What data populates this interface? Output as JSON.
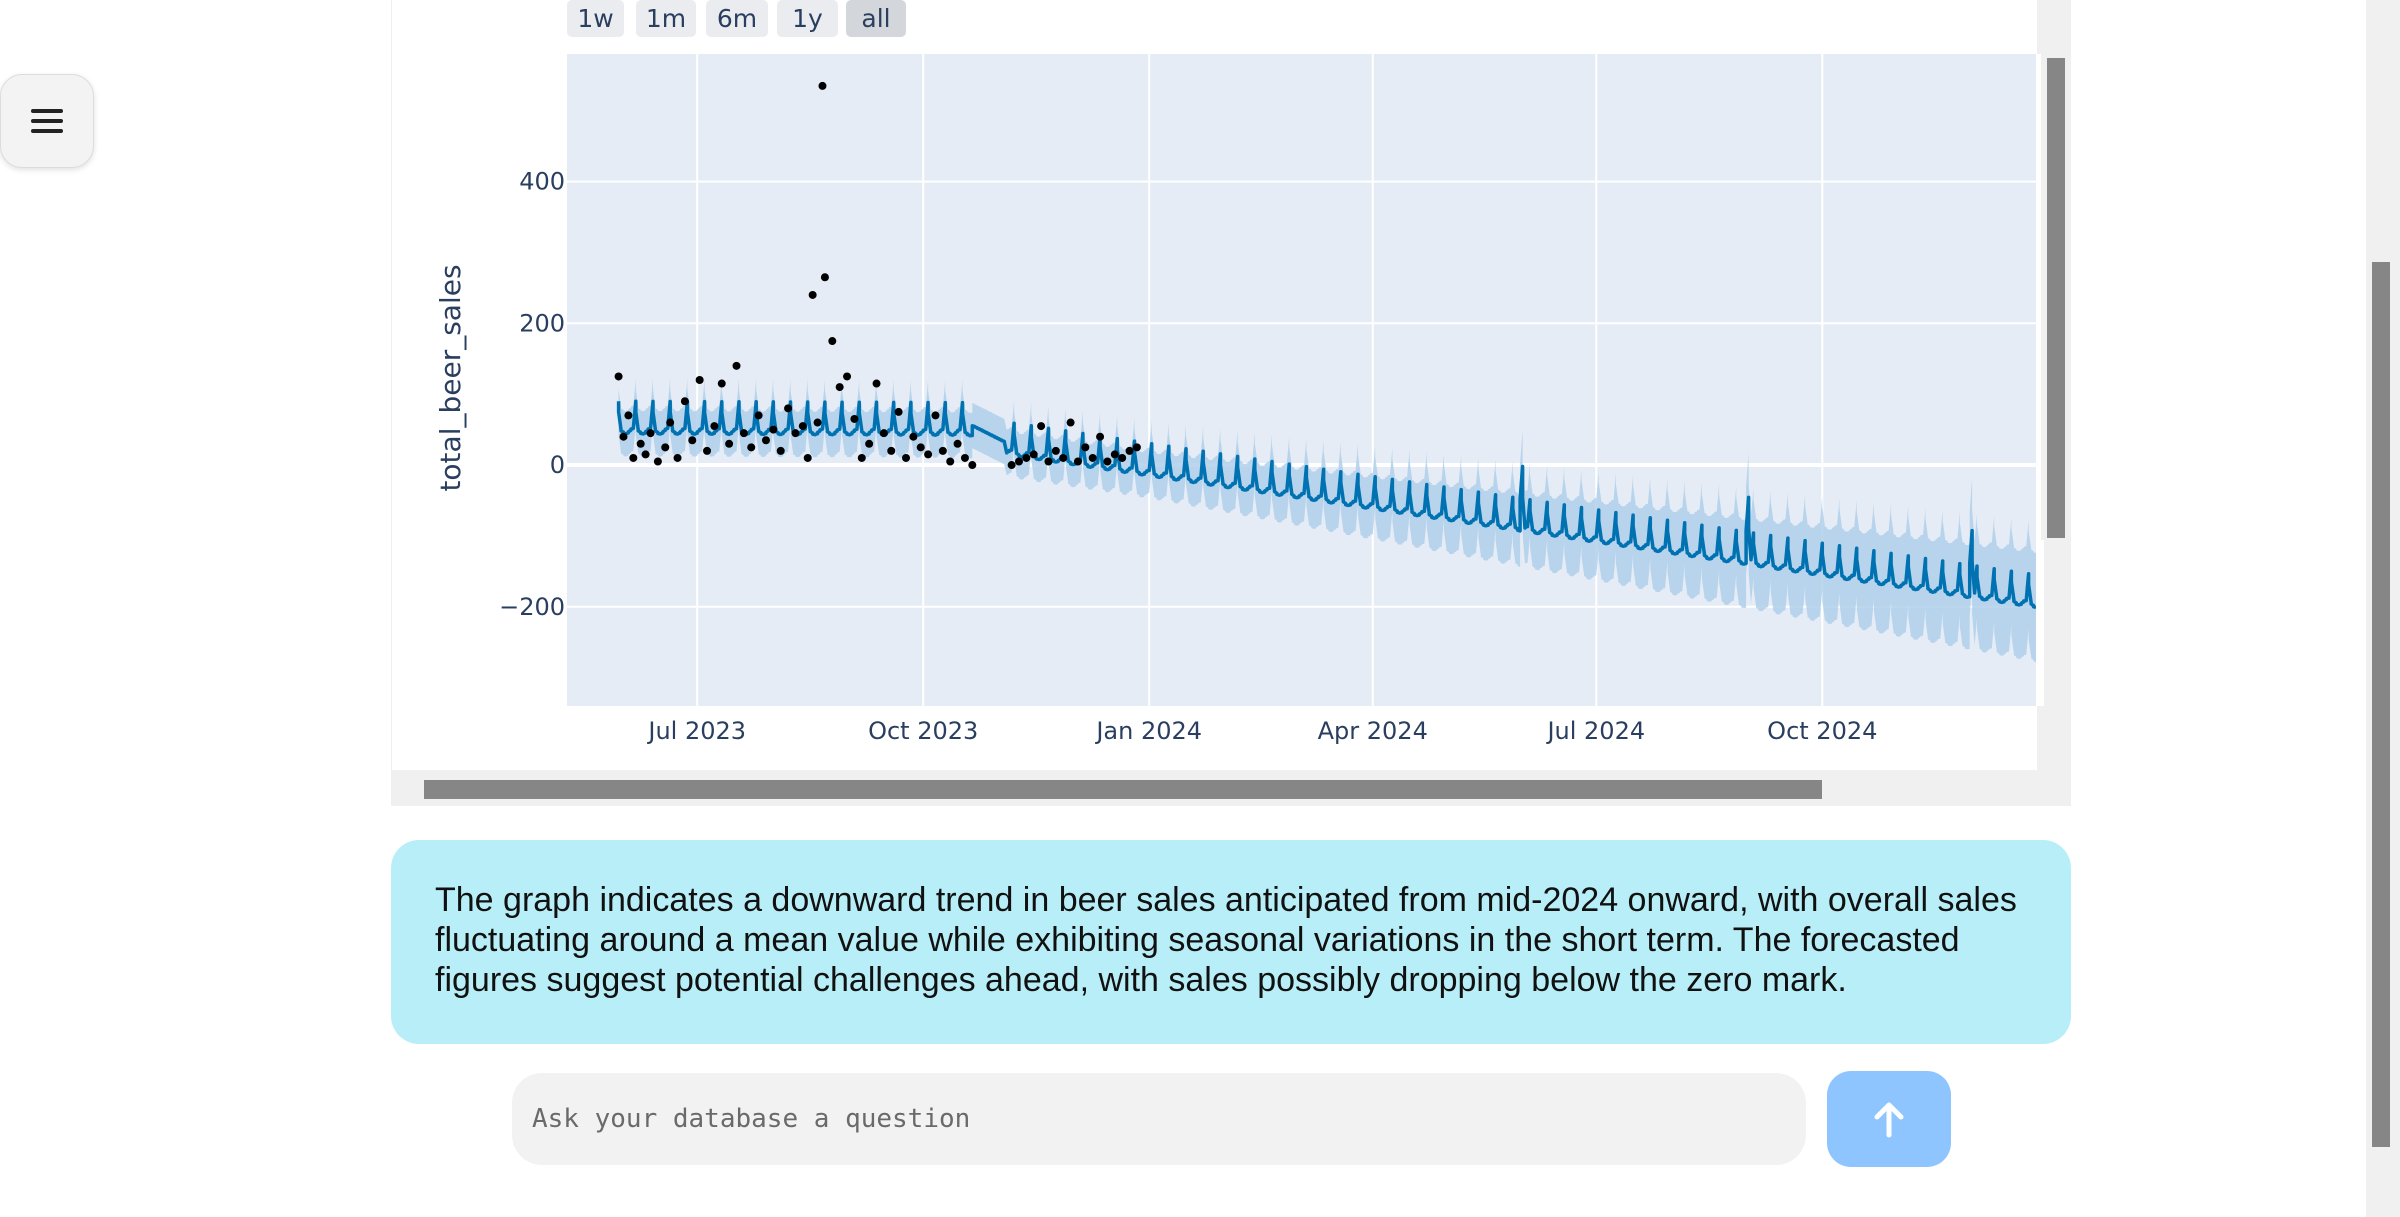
{
  "chart": {
    "range_buttons": [
      {
        "label": "1w",
        "active": false
      },
      {
        "label": "1m",
        "active": false
      },
      {
        "label": "6m",
        "active": false
      },
      {
        "label": "1y",
        "active": false
      },
      {
        "label": "all",
        "active": true
      }
    ]
  },
  "chart_data": {
    "type": "line",
    "title": "",
    "xlabel": "",
    "ylabel": "total_beer_sales",
    "x_tick_labels": [
      "Jul 2023",
      "Oct 2023",
      "Jan 2024",
      "Apr 2024",
      "Jul 2024",
      "Oct 2024"
    ],
    "y_tick_labels": [
      "−200",
      "0",
      "200",
      "400"
    ],
    "y_ticks": [
      -200,
      0,
      200,
      400
    ],
    "ylim": [
      -340,
      580
    ],
    "xlim": [
      "2023-05-09",
      "2024-12-27"
    ],
    "grid": true,
    "legend": "none",
    "colors": {
      "forecast": "#0072b2",
      "band": "#b0d0ea",
      "observed": "#000000",
      "plot_bg": "#e5ecf6",
      "grid": "#ffffff",
      "text": "#2a3f5f"
    },
    "series": [
      {
        "kind": "forecast_trend",
        "x": [
          "2023-05-30",
          "2023-10-20",
          "2023-11-05",
          "2024-12-27"
        ],
        "y": [
          60,
          58,
          30,
          -185
        ]
      },
      {
        "kind": "observed_points",
        "x": [
          "2023-05-30",
          "2023-06-01",
          "2023-06-03",
          "2023-06-05",
          "2023-06-08",
          "2023-06-10",
          "2023-06-12",
          "2023-06-15",
          "2023-06-18",
          "2023-06-20",
          "2023-06-23",
          "2023-06-26",
          "2023-06-29",
          "2023-07-02",
          "2023-07-05",
          "2023-07-08",
          "2023-07-11",
          "2023-07-14",
          "2023-07-17",
          "2023-07-20",
          "2023-07-23",
          "2023-07-26",
          "2023-07-29",
          "2023-08-01",
          "2023-08-04",
          "2023-08-07",
          "2023-08-10",
          "2023-08-13",
          "2023-08-15",
          "2023-08-17",
          "2023-08-19",
          "2023-08-22",
          "2023-08-25",
          "2023-08-28",
          "2023-08-31",
          "2023-09-03",
          "2023-09-06",
          "2023-09-09",
          "2023-09-12",
          "2023-09-15",
          "2023-09-18",
          "2023-09-21",
          "2023-09-24",
          "2023-09-27",
          "2023-09-30",
          "2023-10-03",
          "2023-10-06",
          "2023-10-09",
          "2023-10-12",
          "2023-10-15",
          "2023-10-18",
          "2023-10-21",
          "2023-11-06",
          "2023-11-09",
          "2023-11-12",
          "2023-11-15",
          "2023-11-18",
          "2023-11-21",
          "2023-11-24",
          "2023-11-27",
          "2023-11-30",
          "2023-12-03",
          "2023-12-06",
          "2023-12-09",
          "2023-12-12",
          "2023-12-15",
          "2023-12-18",
          "2023-12-21",
          "2023-12-24",
          "2023-12-27"
        ],
        "y": [
          125,
          40,
          70,
          10,
          30,
          15,
          45,
          5,
          25,
          60,
          10,
          90,
          35,
          120,
          20,
          55,
          115,
          30,
          140,
          45,
          25,
          70,
          35,
          50,
          20,
          80,
          45,
          55,
          10,
          240,
          60,
          265,
          175,
          110,
          125,
          65,
          10,
          30,
          115,
          45,
          20,
          75,
          10,
          40,
          25,
          15,
          70,
          20,
          5,
          30,
          10,
          0,
          0,
          5,
          10,
          15,
          55,
          5,
          20,
          10,
          60,
          5,
          25,
          10,
          40,
          5,
          15,
          10,
          20,
          25
        ]
      }
    ]
  },
  "summary": {
    "text": "The graph indicates a downward trend in beer sales anticipated from mid-2024 onward, with overall sales fluctuating around a mean value while exhibiting seasonal variations in the short term. The forecasted figures suggest potential challenges ahead, with sales possibly dropping below the zero mark."
  },
  "chat_input": {
    "placeholder": "Ask your database a question",
    "value": ""
  },
  "icons": {
    "menu": "hamburger-icon",
    "send": "arrow-up-icon"
  }
}
